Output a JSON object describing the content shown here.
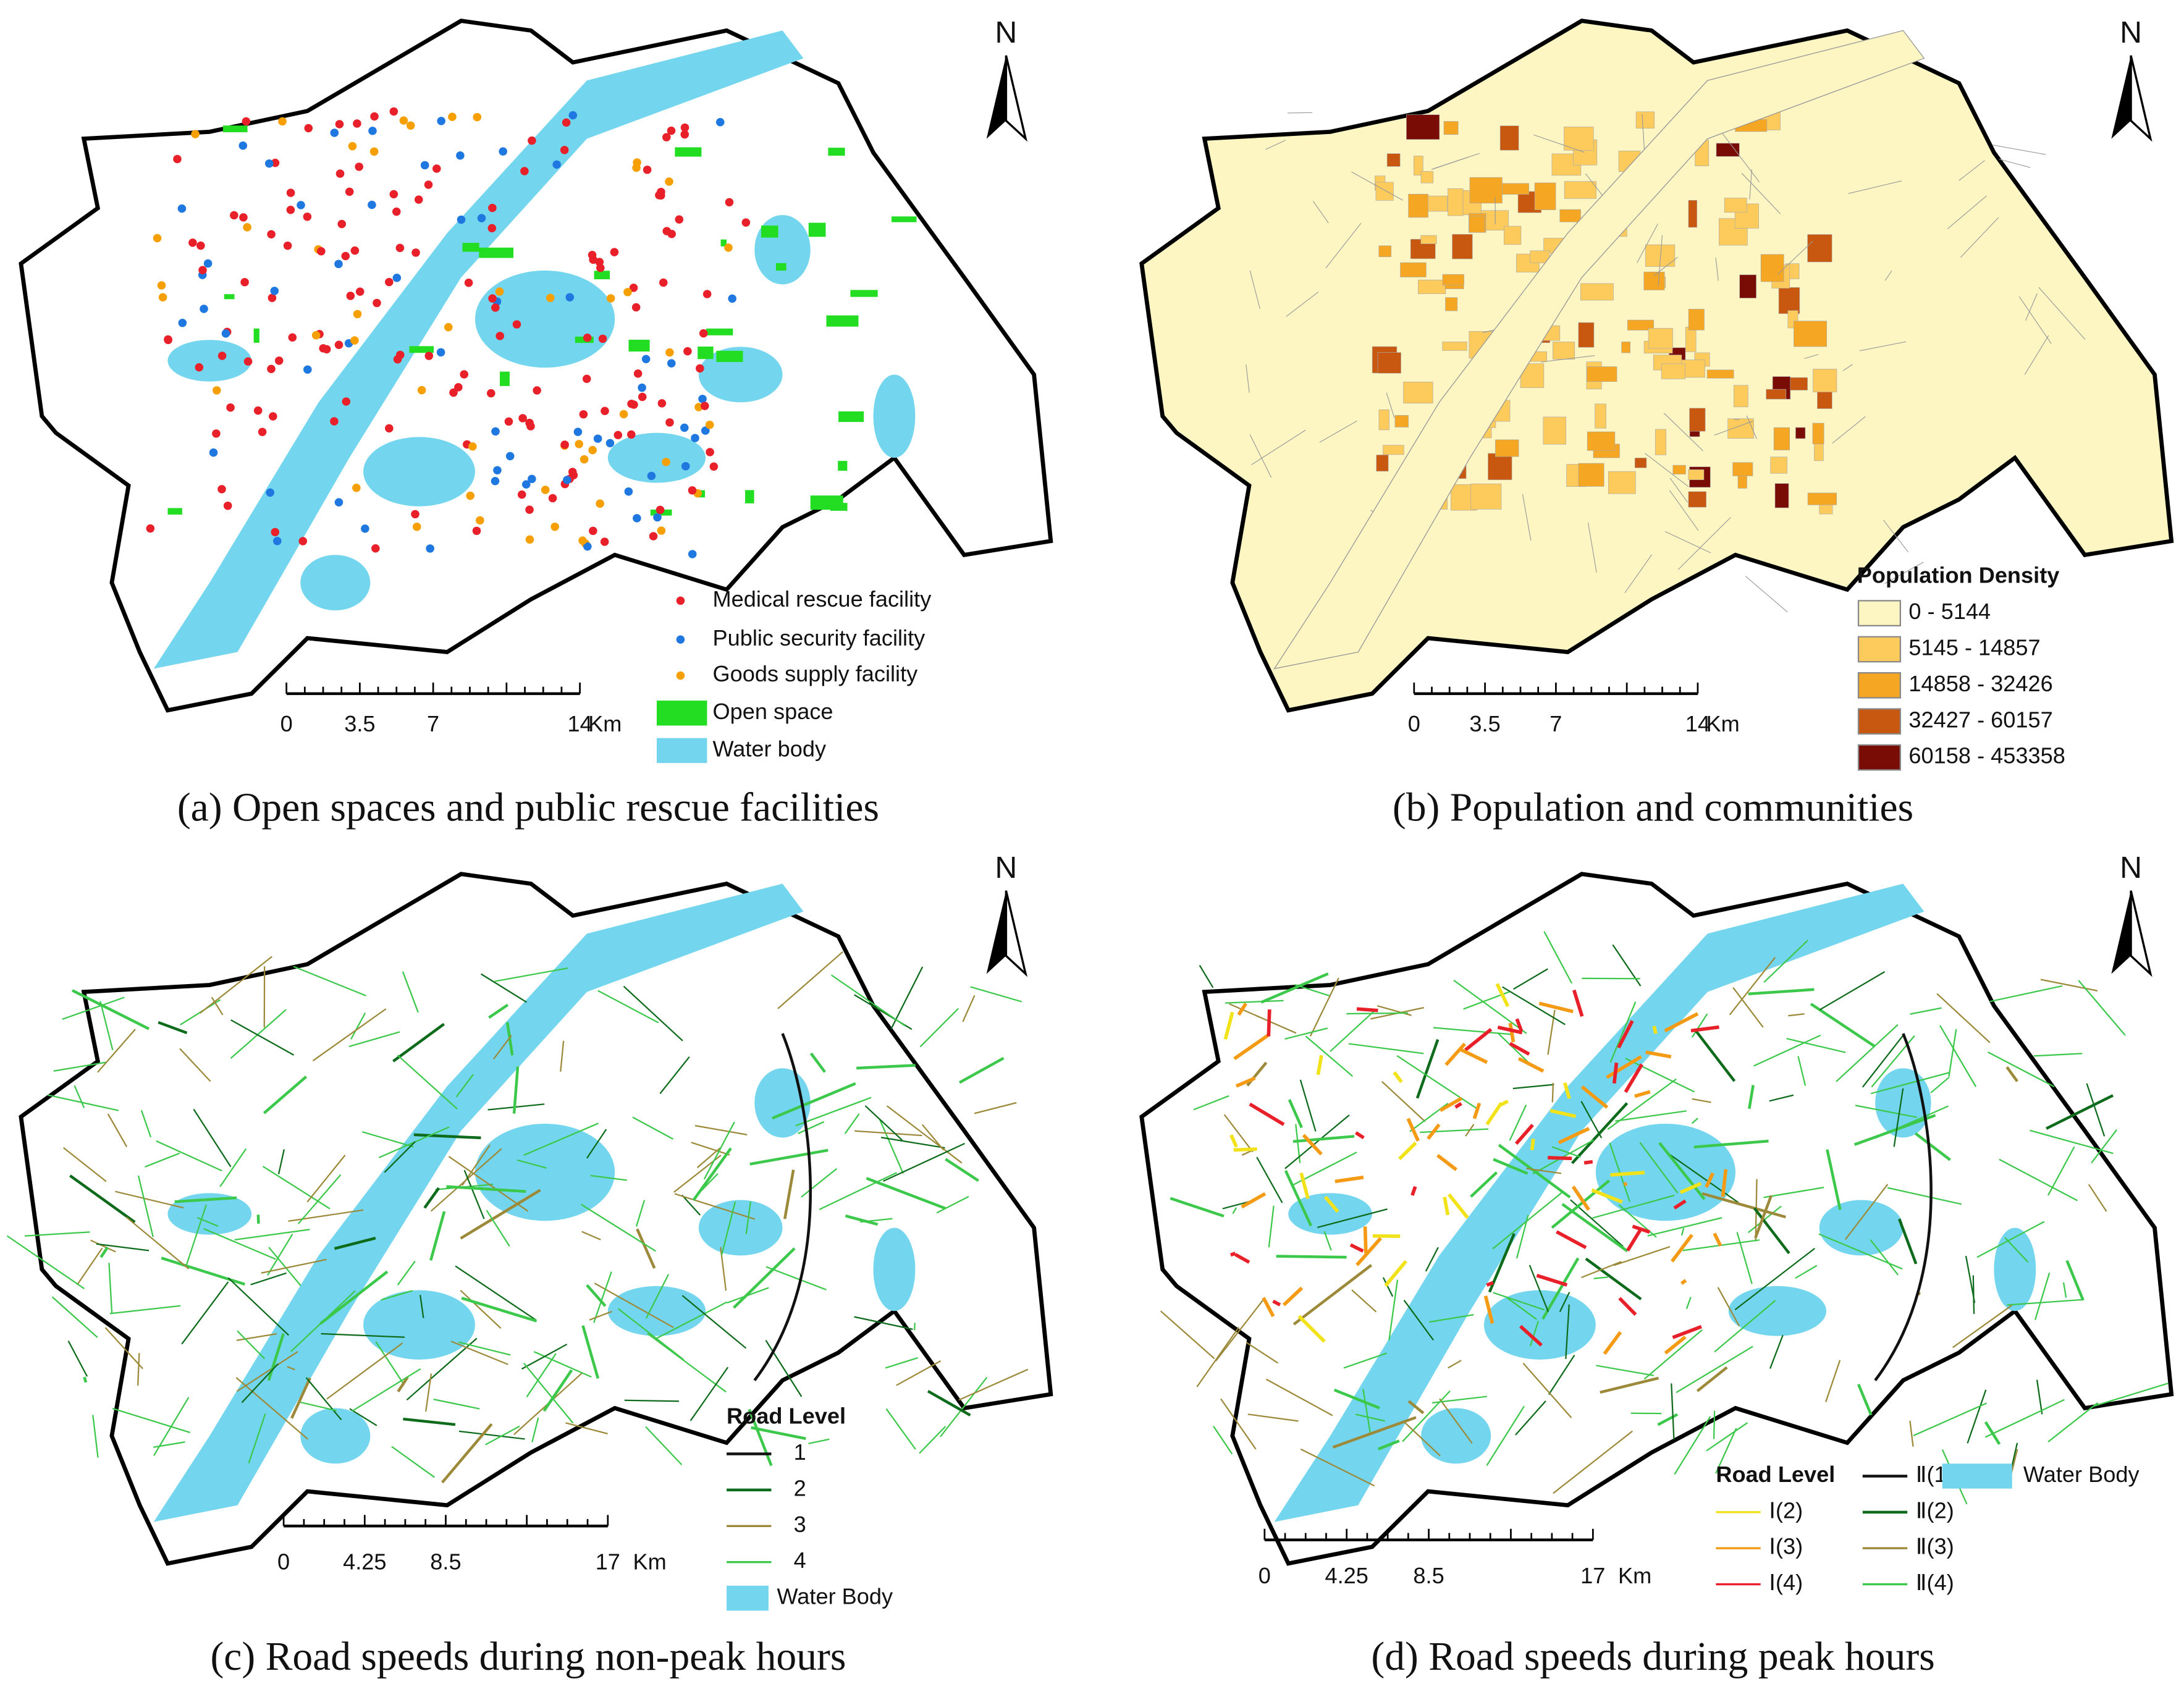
{
  "panels": [
    {
      "caption": "(a) Open spaces and public rescue facilities",
      "north": "N",
      "scale": {
        "ticks": [
          "0",
          "3.5",
          "7",
          "14"
        ],
        "unit": "Km"
      },
      "legend": {
        "items": [
          {
            "label": "Medical rescue facility",
            "symbol": "dot",
            "color": "#e8202a"
          },
          {
            "label": "Public security facility",
            "symbol": "dot",
            "color": "#1f78e0"
          },
          {
            "label": "Goods supply facility",
            "symbol": "dot",
            "color": "#f5a000"
          },
          {
            "label": "Open space",
            "symbol": "rect",
            "color": "#22dd22"
          },
          {
            "label": "Water body",
            "symbol": "rect",
            "color": "#74d6ee"
          }
        ]
      }
    },
    {
      "caption": "(b) Population and communities",
      "north": "N",
      "scale": {
        "ticks": [
          "0",
          "3.5",
          "7",
          "14"
        ],
        "unit": "Km"
      },
      "legend": {
        "title": "Population Density",
        "items": [
          {
            "label": "0 - 5144",
            "symbol": "rect",
            "color": "#fdf6c3"
          },
          {
            "label": "5145 - 14857",
            "symbol": "rect",
            "color": "#fdcb5c"
          },
          {
            "label": "14858 - 32426",
            "symbol": "rect",
            "color": "#f5a623"
          },
          {
            "label": "32427 - 60157",
            "symbol": "rect",
            "color": "#c8580f"
          },
          {
            "label": "60158 - 453358",
            "symbol": "rect",
            "color": "#7a0c06"
          }
        ]
      }
    },
    {
      "caption": "(c) Road speeds during non-peak hours",
      "north": "N",
      "scale": {
        "ticks": [
          "0",
          "4.25",
          "8.5",
          "17"
        ],
        "unit": "Km"
      },
      "legend": {
        "title": "Road Level",
        "items": [
          {
            "label": "1",
            "symbol": "line",
            "color": "#111111"
          },
          {
            "label": "2",
            "symbol": "line",
            "color": "#0e6b1c"
          },
          {
            "label": "3",
            "symbol": "line",
            "color": "#9c8a3a"
          },
          {
            "label": "4",
            "symbol": "line",
            "color": "#3cc84a"
          },
          {
            "label": "Water Body",
            "symbol": "rect",
            "color": "#74d6ee"
          }
        ]
      }
    },
    {
      "caption": "(d) Road speeds during peak hours",
      "north": "N",
      "scale": {
        "ticks": [
          "0",
          "4.25",
          "8.5",
          "17"
        ],
        "unit": "Km"
      },
      "legend": {
        "title": "Road Level",
        "items": [
          {
            "label": "Ⅰ(2)",
            "symbol": "line",
            "color": "#f2e21a"
          },
          {
            "label": "Ⅰ(3)",
            "symbol": "line",
            "color": "#f59a14"
          },
          {
            "label": "Ⅰ(4)",
            "symbol": "line",
            "color": "#e8202a"
          },
          {
            "label": "Ⅱ(1)",
            "symbol": "line",
            "color": "#111111"
          },
          {
            "label": "Ⅱ(2)",
            "symbol": "line",
            "color": "#0e6b1c"
          },
          {
            "label": "Ⅱ(3)",
            "symbol": "line",
            "color": "#9c8a3a"
          },
          {
            "label": "Ⅱ(4)",
            "symbol": "line",
            "color": "#3cc84a"
          },
          {
            "label": "Water Body",
            "symbol": "rect",
            "color": "#74d6ee"
          }
        ]
      }
    }
  ]
}
